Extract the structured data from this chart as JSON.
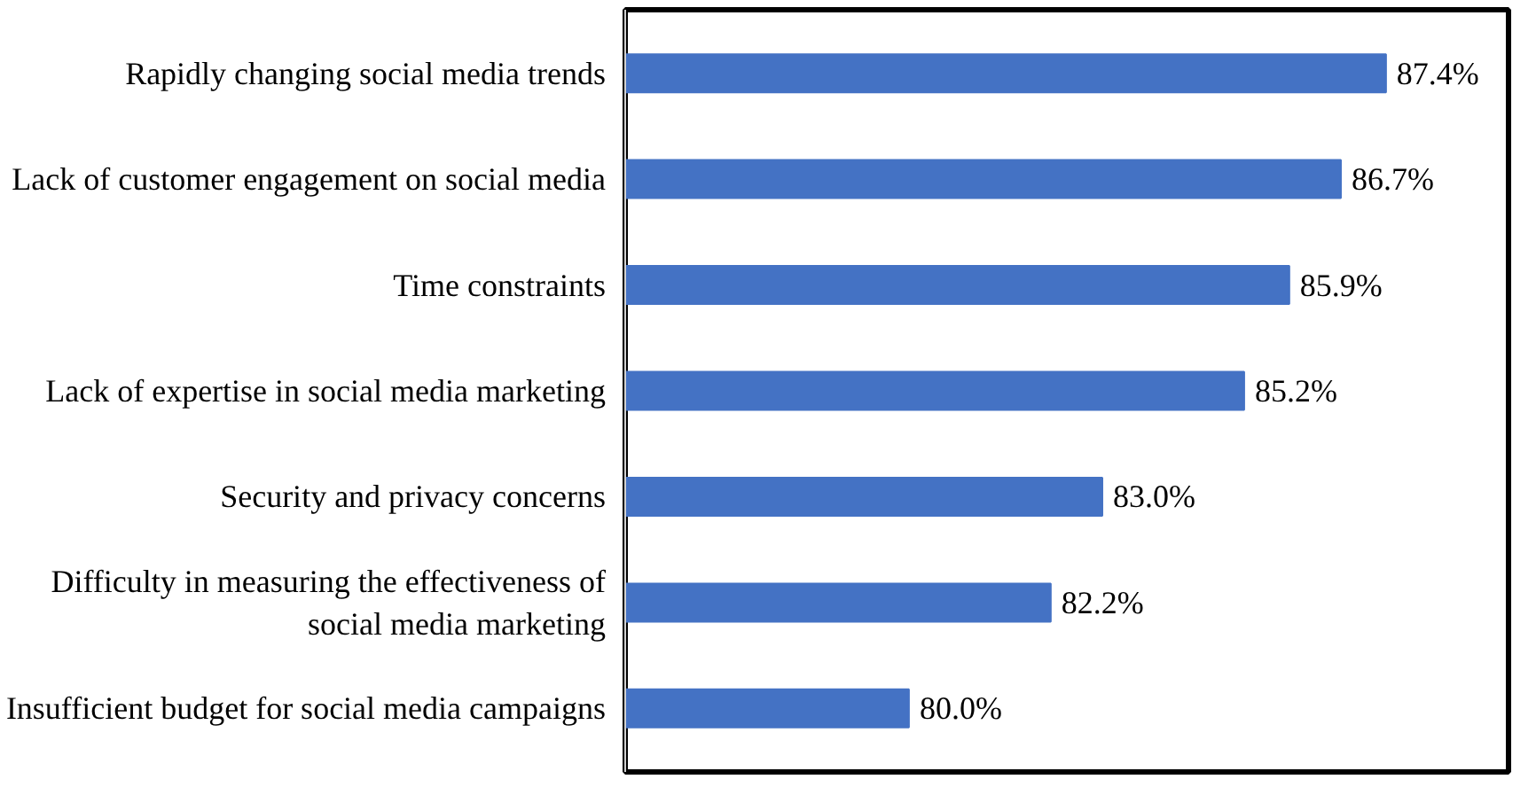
{
  "chart_data": {
    "type": "bar",
    "orientation": "horizontal",
    "categories": [
      "Rapidly changing social media trends",
      "Lack of customer engagement on social media",
      "Time constraints",
      "Lack of expertise in social media marketing",
      "Security and privacy concerns",
      "Difficulty in measuring the effectiveness of\nsocial media marketing",
      "Insufficient budget for social media campaigns"
    ],
    "values": [
      87.4,
      86.7,
      85.9,
      85.2,
      83.0,
      82.2,
      80.0
    ],
    "value_labels": [
      "87.4%",
      "86.7%",
      "85.9%",
      "85.2%",
      "83.0%",
      "82.2%",
      "80.0%"
    ],
    "color": "#4472c4",
    "xlim": [
      75.6,
      89.3
    ],
    "tick_labels": "y",
    "grid": false
  }
}
